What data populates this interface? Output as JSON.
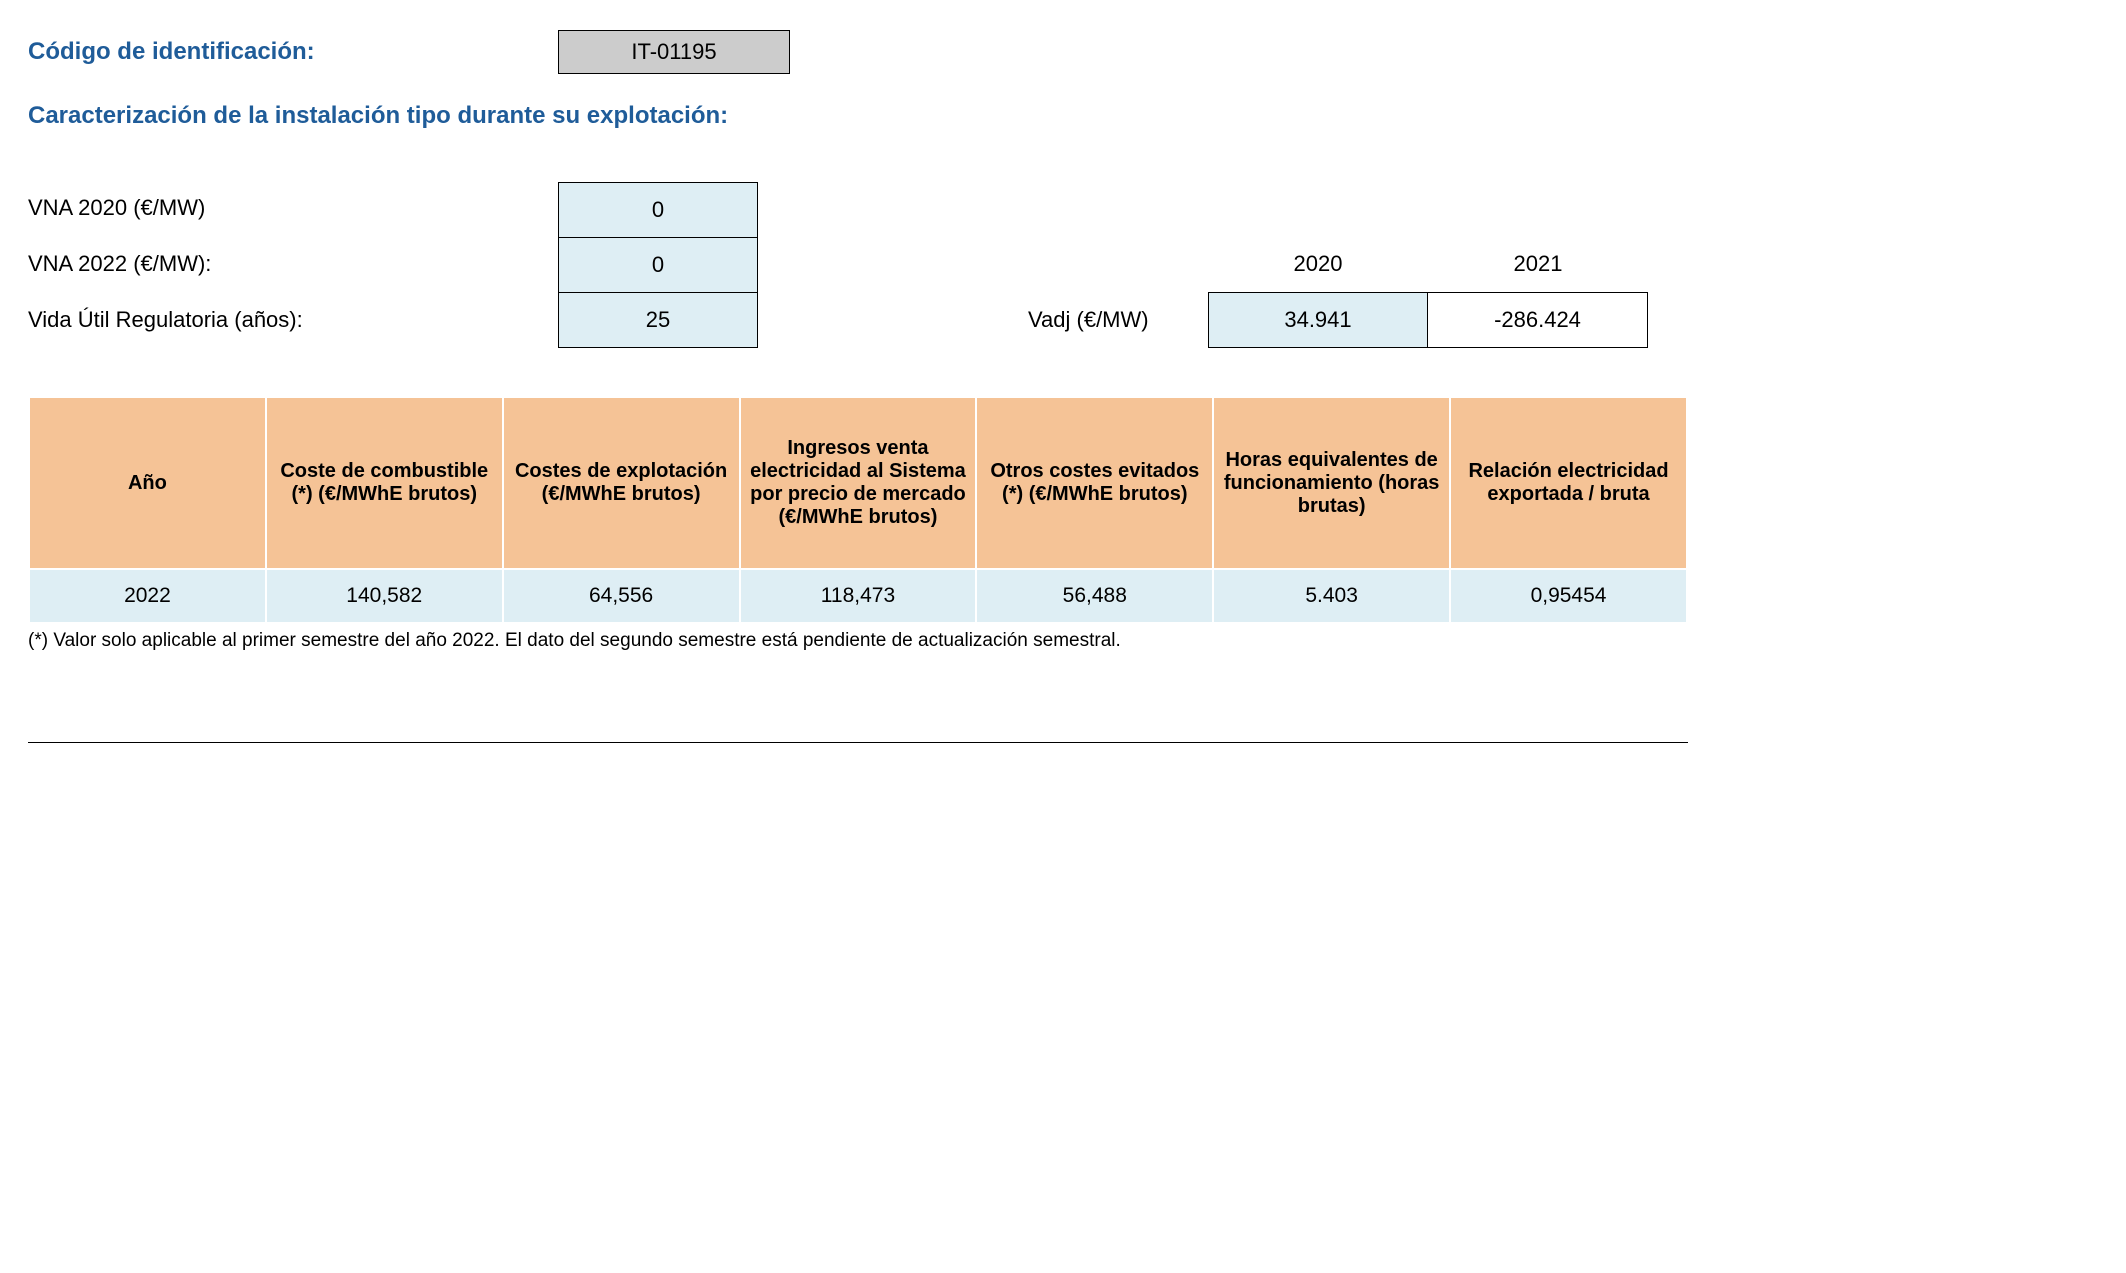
{
  "header": {
    "code_label": "Código de identificación:",
    "code_value": "IT-01195",
    "section_heading": "Caracterización de la instalación tipo durante su explotación:"
  },
  "params": {
    "vna2020_label": "VNA 2020 (€/MW)",
    "vna2020_value": "0",
    "vna2022_label": "VNA 2022 (€/MW):",
    "vna2022_value": "0",
    "vida_label": "Vida Útil Regulatoria (años):",
    "vida_value": "25"
  },
  "vadj": {
    "label": "Vadj (€/MW)",
    "year1": "2020",
    "year2": "2021",
    "val1": "34.941",
    "val2": "-286.424"
  },
  "table": {
    "headers": {
      "c1": "Año",
      "c2": "Coste de combustible (*) (€/MWhE brutos)",
      "c3": "Costes de explotación (€/MWhE brutos)",
      "c4": "Ingresos venta electricidad al Sistema por precio de mercado (€/MWhE brutos)",
      "c5": "Otros costes evitados (*) (€/MWhE brutos)",
      "c6": "Horas equivalentes de funcionamiento (horas brutas)",
      "c7": "Relación electricidad exportada / bruta"
    },
    "row": {
      "c1": "2022",
      "c2": "140,582",
      "c3": "64,556",
      "c4": "118,473",
      "c5": "56,488",
      "c6": "5.403",
      "c7": "0,95454"
    },
    "header_bg": "#f5c396",
    "row_bg": "#deeef4"
  },
  "footnote": "(*) Valor solo aplicable al primer semestre del año 2022. El dato del segundo semestre está pendiente de actualización semestral."
}
